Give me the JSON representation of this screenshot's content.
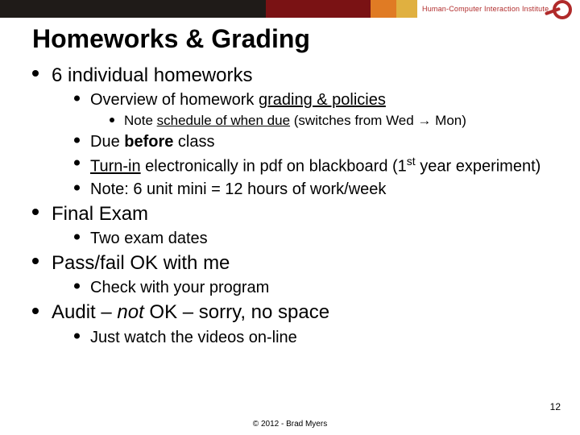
{
  "header": {
    "institute_text": "Human-Computer Interaction Institute",
    "colors": {
      "black": "#1f1b18",
      "darkred": "#7a1214",
      "orange": "#e07b24",
      "gold": "#e0b040",
      "brand": "#b02a2a"
    }
  },
  "title": "Homeworks & Grading",
  "b1_label": "6 individual homeworks",
  "b1_s1_pre": "Overview of homework ",
  "b1_s1_u": "grading & policies",
  "b1_s1_n_pre": "Note ",
  "b1_s1_n_u": "schedule of when due",
  "b1_s1_n_post": " (switches from Wed → Mon)",
  "b1_s2_pre": "Due ",
  "b1_s2_b": "before",
  "b1_s2_post": " class",
  "b1_s3_u": "Turn-in",
  "b1_s3_mid": " electronically in pdf on blackboard (1",
  "b1_s3_sup": "st",
  "b1_s3_post": " year experiment)",
  "b1_s4": "Note: 6 unit mini = 12 hours of work/week",
  "b2_label": "Final Exam",
  "b2_s1": "Two exam dates",
  "b3_label": "Pass/fail OK with me",
  "b3_s1": "Check with your program",
  "b4_pre": "Audit – ",
  "b4_i": "not",
  "b4_post": " OK – sorry, no space",
  "b4_s1": "Just watch the videos on-line",
  "page_number": "12",
  "copyright": "© 2012 - Brad Myers"
}
